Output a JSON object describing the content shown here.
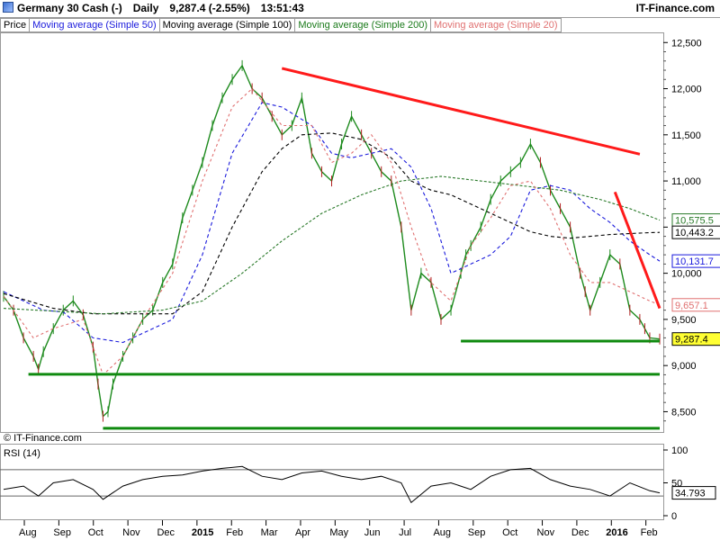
{
  "header": {
    "instrument": "Germany 30 Cash (-)",
    "interval": "Daily",
    "quote": "9,287.4 (-2.55%)",
    "time": "13:51:43",
    "provider": "IT-Finance.com"
  },
  "legend": [
    {
      "label": "Price",
      "color": "#000000"
    },
    {
      "label": "Moving average (Simple 50)",
      "color": "#1a1adc"
    },
    {
      "label": "Moving average (Simple 100)",
      "color": "#000000"
    },
    {
      "label": "Moving average (Simple 200)",
      "color": "#1a7a1a"
    },
    {
      "label": "Moving average (Simple 20)",
      "color": "#e07070"
    }
  ],
  "watermark": "© IT-Finance.com",
  "colors": {
    "price": "#1d8a1d",
    "price_down": "#b02020",
    "ma50": "#1a1adc",
    "ma100": "#000000",
    "ma200": "#2a7a2a",
    "ma20": "#e07070",
    "trend_red": "#ff1a1a",
    "trend_green": "#0f8a0f"
  },
  "chart_data": [
    {
      "type": "line",
      "x_labels": [
        "Aug",
        "Sep",
        "Oct",
        "Nov",
        "Dec",
        "2015",
        "Feb",
        "Mar",
        "Apr",
        "May",
        "Jun",
        "Jul",
        "Aug",
        "Sep",
        "Oct",
        "Nov",
        "Dec",
        "2016",
        "Feb"
      ],
      "ylim": [
        8280,
        12600
      ],
      "y_ticks": [
        8500,
        9000,
        9500,
        10000,
        10500,
        11000,
        11500,
        12000,
        12500
      ],
      "y_tick_labels": [
        "8,500",
        "9,000",
        "9,500",
        "10,000",
        "10,500",
        "11,000",
        "11,500",
        "12,000",
        "12,500"
      ],
      "x_range": [
        0,
        132
      ],
      "series": [
        {
          "name": "Price",
          "x": [
            0,
            2,
            4,
            6,
            7,
            8,
            10,
            12,
            14,
            16,
            18,
            19,
            20,
            21,
            22,
            24,
            26,
            28,
            30,
            32,
            34,
            36,
            38,
            40,
            42,
            44,
            46,
            48,
            50,
            52,
            54,
            56,
            58,
            60,
            62,
            64,
            66,
            68,
            70,
            72,
            74,
            76,
            78,
            80,
            82,
            84,
            86,
            88,
            90,
            92,
            93,
            94,
            96,
            98,
            100,
            102,
            104,
            106,
            108,
            110,
            112,
            114,
            116,
            117,
            118,
            120,
            122,
            124,
            126,
            128,
            129,
            130,
            132
          ],
          "values": [
            9750,
            9600,
            9300,
            9100,
            8960,
            9150,
            9400,
            9600,
            9700,
            9550,
            9200,
            8800,
            8450,
            8500,
            8800,
            9100,
            9300,
            9500,
            9600,
            9900,
            10100,
            10600,
            10900,
            11200,
            11600,
            11900,
            12100,
            12250,
            12000,
            11900,
            11700,
            11500,
            11600,
            11900,
            11300,
            11100,
            11000,
            11400,
            11700,
            11500,
            11300,
            11100,
            11000,
            10500,
            9600,
            10000,
            9900,
            9500,
            9600,
            10000,
            10200,
            10300,
            10500,
            10800,
            11000,
            11100,
            11200,
            11400,
            11200,
            10900,
            10700,
            10500,
            10000,
            9800,
            9600,
            9900,
            10200,
            10100,
            9600,
            9500,
            9400,
            9300,
            9287.4
          ]
        },
        {
          "name": "Moving average (Simple 50)",
          "x": [
            0,
            8,
            12,
            18,
            24,
            28,
            34,
            40,
            46,
            52,
            56,
            62,
            66,
            70,
            74,
            78,
            82,
            86,
            90,
            94,
            98,
            102,
            106,
            110,
            114,
            118,
            122,
            126,
            130,
            132
          ],
          "values": [
            9800,
            9600,
            9580,
            9300,
            9250,
            9350,
            9500,
            10200,
            11300,
            11850,
            11800,
            11600,
            11300,
            11250,
            11300,
            11350,
            11150,
            10700,
            10000,
            10100,
            10200,
            10400,
            10900,
            10950,
            10900,
            10700,
            10550,
            10350,
            10200,
            10131.7
          ]
        },
        {
          "name": "Moving average (Simple 100)",
          "x": [
            0,
            10,
            18,
            26,
            34,
            40,
            46,
            52,
            56,
            60,
            66,
            72,
            78,
            82,
            86,
            90,
            94,
            98,
            102,
            106,
            110,
            114,
            118,
            122,
            126,
            130,
            132
          ],
          "values": [
            9780,
            9620,
            9560,
            9560,
            9560,
            9800,
            10500,
            11100,
            11350,
            11500,
            11520,
            11450,
            11250,
            11000,
            10900,
            10850,
            10750,
            10650,
            10550,
            10450,
            10400,
            10380,
            10400,
            10420,
            10430,
            10440,
            10443.2
          ]
        },
        {
          "name": "Moving average (Simple 200)",
          "x": [
            0,
            20,
            32,
            40,
            48,
            56,
            64,
            72,
            80,
            88,
            96,
            104,
            112,
            120,
            126,
            132
          ],
          "values": [
            9620,
            9560,
            9600,
            9700,
            10000,
            10350,
            10650,
            10850,
            11000,
            11050,
            11000,
            10950,
            10900,
            10800,
            10700,
            10575.5
          ]
        },
        {
          "name": "Moving average (Simple 20)",
          "x": [
            0,
            6,
            10,
            16,
            20,
            24,
            28,
            34,
            40,
            46,
            50,
            56,
            62,
            66,
            70,
            74,
            78,
            82,
            86,
            90,
            94,
            98,
            102,
            106,
            110,
            114,
            118,
            122,
            126,
            130,
            132
          ],
          "values": [
            9750,
            9300,
            9400,
            9500,
            8900,
            9100,
            9500,
            10000,
            11000,
            11800,
            12000,
            11600,
            11600,
            11200,
            11300,
            11500,
            11200,
            10500,
            9900,
            9700,
            10300,
            10600,
            10950,
            11000,
            10700,
            10200,
            9900,
            9900,
            9800,
            9700,
            9657.1
          ]
        }
      ],
      "annotations": [
        {
          "type": "trendline",
          "color": "red",
          "from": [
            56,
            12220
          ],
          "to": [
            128,
            11290
          ]
        },
        {
          "type": "trendline",
          "color": "red",
          "from": [
            123,
            10880
          ],
          "to": [
            132,
            9620
          ]
        },
        {
          "type": "trendline",
          "color": "green",
          "from": [
            92,
            9265
          ],
          "to": [
            132,
            9265
          ]
        },
        {
          "type": "trendline",
          "color": "green",
          "from": [
            5,
            8905
          ],
          "to": [
            132,
            8905
          ]
        },
        {
          "type": "trendline",
          "color": "green",
          "from": [
            20,
            8320
          ],
          "to": [
            132,
            8320
          ]
        }
      ],
      "price_labels": [
        {
          "series": "Moving average (Simple 200)",
          "value": 10575.5,
          "text": "10,575.5"
        },
        {
          "series": "Moving average (Simple 100)",
          "value": 10443.2,
          "text": "10,443.2"
        },
        {
          "series": "Moving average (Simple 50)",
          "value": 10131.7,
          "text": "10,131.7"
        },
        {
          "series": "Moving average (Simple 20)",
          "value": 9657.1,
          "text": "9,657.1"
        },
        {
          "series": "Price",
          "value": 9287.4,
          "text": "9,287.4"
        }
      ]
    },
    {
      "type": "line",
      "title": "RSI (14)",
      "ylim": [
        0,
        100
      ],
      "y_ticks": [
        0,
        50,
        100
      ],
      "y_tick_labels": [
        "0",
        "50",
        "100"
      ],
      "levels": [
        30,
        70
      ],
      "series": [
        {
          "name": "RSI (14)",
          "x": [
            0,
            4,
            7,
            10,
            14,
            18,
            20,
            24,
            28,
            32,
            36,
            40,
            44,
            48,
            52,
            56,
            60,
            64,
            68,
            72,
            76,
            80,
            82,
            86,
            90,
            94,
            98,
            102,
            106,
            110,
            114,
            118,
            122,
            126,
            130,
            132
          ],
          "values": [
            40,
            45,
            30,
            50,
            55,
            40,
            25,
            45,
            55,
            60,
            62,
            68,
            72,
            75,
            60,
            55,
            65,
            68,
            60,
            55,
            60,
            50,
            20,
            45,
            50,
            40,
            60,
            70,
            72,
            55,
            45,
            40,
            30,
            50,
            38,
            34.793
          ]
        }
      ],
      "last_value_text": "34.793"
    }
  ]
}
